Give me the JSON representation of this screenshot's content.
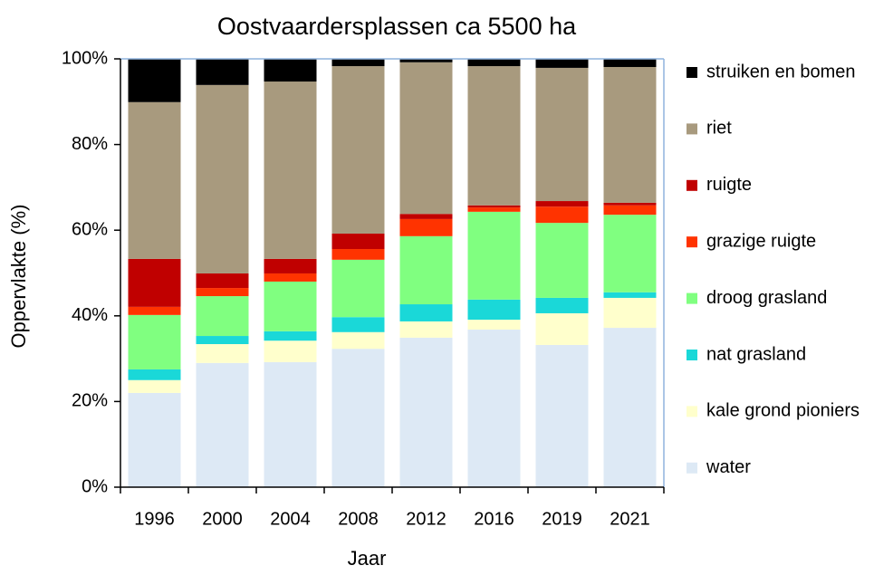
{
  "chart_data": {
    "type": "stacked_bar",
    "title": "Oostvaardersplassen ca 5500 ha",
    "x_label": "Jaar",
    "y_label": "Oppervlakte (%)",
    "categories": [
      "1996",
      "2000",
      "2004",
      "2008",
      "2012",
      "2016",
      "2019",
      "2021"
    ],
    "series": [
      {
        "name": "water",
        "color": "#dde9f5",
        "values": [
          22,
          29,
          29.2,
          32.3,
          34.9,
          36.8,
          33.2,
          37.2
        ]
      },
      {
        "name": "kale grond pioniers",
        "color": "#ffffcc",
        "values": [
          3,
          4.4,
          5,
          3.9,
          3.8,
          2.3,
          7.4,
          7
        ]
      },
      {
        "name": "nat grasland",
        "color": "#1ad8d8",
        "values": [
          2.5,
          1.9,
          2.2,
          3.5,
          4,
          4.7,
          3.6,
          1.3
        ]
      },
      {
        "name": "droog grasland",
        "color": "#80ff80",
        "values": [
          12.7,
          9.3,
          11.6,
          13.4,
          15.9,
          20.5,
          17.5,
          18.1
        ]
      },
      {
        "name": "grazige ruigte",
        "color": "#ff3300",
        "values": [
          1.9,
          1.9,
          1.9,
          2.5,
          4,
          1,
          3.8,
          2.2
        ]
      },
      {
        "name": "ruigte",
        "color": "#c00000",
        "values": [
          11.2,
          3.4,
          3.4,
          3.6,
          1.2,
          0.5,
          1.3,
          0.6
        ]
      },
      {
        "name": "riet",
        "color": "#a89a7e",
        "values": [
          36.6,
          44,
          41.4,
          39.1,
          35.4,
          32.5,
          31.1,
          31.7
        ]
      },
      {
        "name": "struiken en bomen",
        "color": "#000000",
        "values": [
          10.1,
          6.1,
          5.3,
          1.7,
          0.8,
          1.7,
          2.1,
          1.9
        ]
      }
    ],
    "ylim": [
      0,
      100
    ],
    "yticks": [
      {
        "value": 0,
        "label": "0%"
      },
      {
        "value": 20,
        "label": "20%"
      },
      {
        "value": 40,
        "label": "40%"
      },
      {
        "value": 60,
        "label": "60%"
      },
      {
        "value": 80,
        "label": "80%"
      },
      {
        "value": 100,
        "label": "100%"
      }
    ],
    "legend": "right"
  }
}
